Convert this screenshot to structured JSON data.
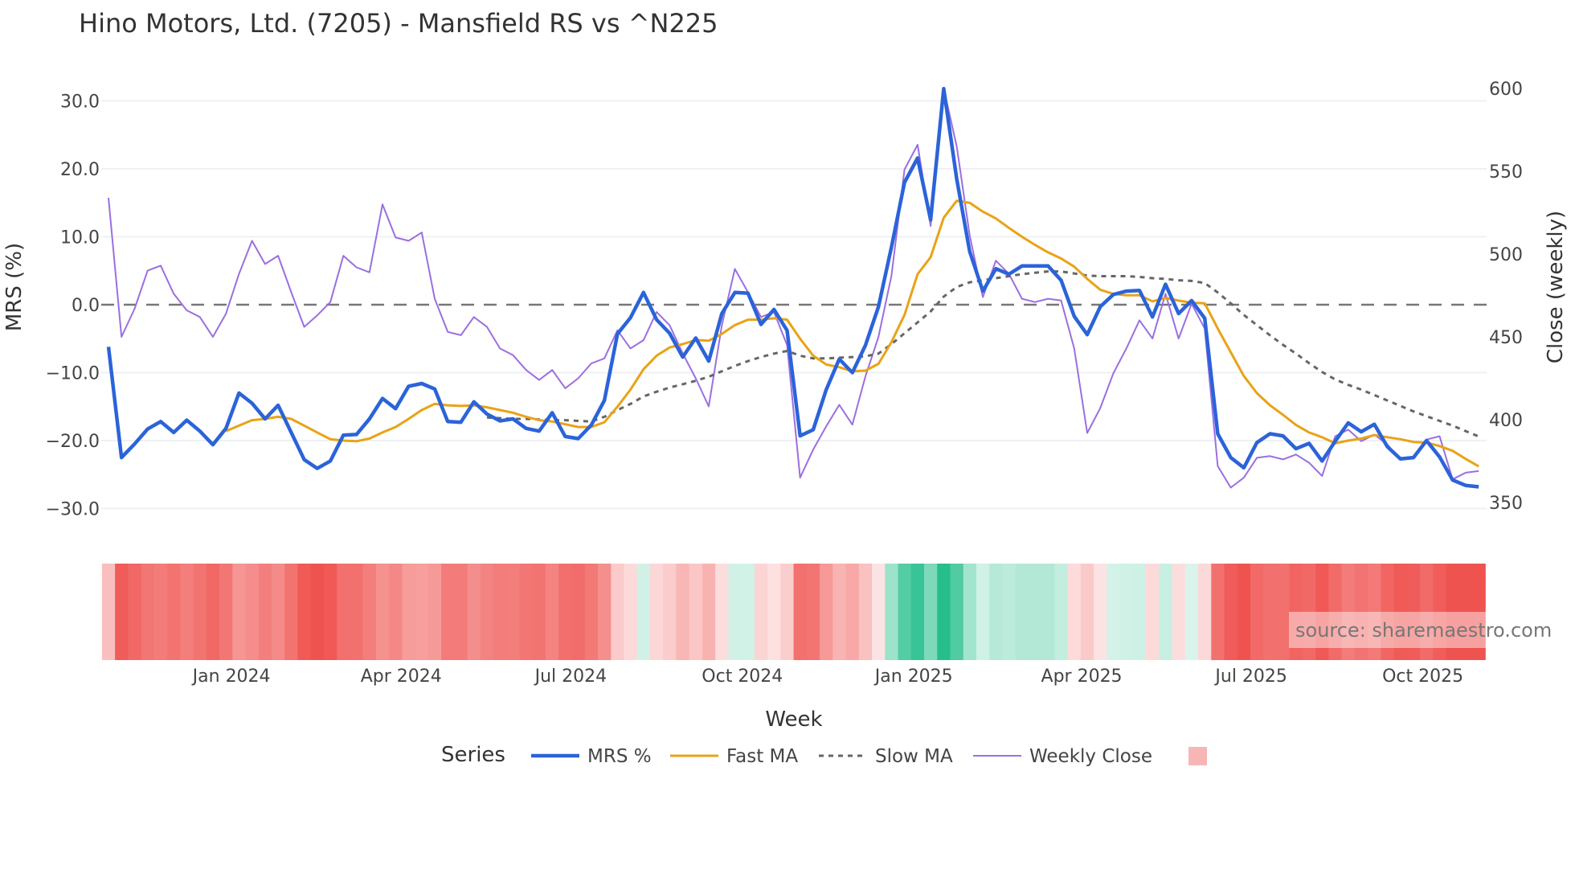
{
  "chart_data": {
    "type": "line",
    "title": "Hino Motors, Ltd. (7205) - Mansfield RS vs ^N225",
    "xlabel": "Week",
    "ylabel": "MRS (%)",
    "y2label": "Close (weekly)",
    "x_start": "2023-10-27",
    "x_step_days": 7,
    "ylim": [
      -33,
      34
    ],
    "y2lim": [
      330,
      613
    ],
    "yticks": [
      "30.0",
      "20.0",
      "10.0",
      "0.0",
      "−10.0",
      "−20.0",
      "−30.0"
    ],
    "ytick_values": [
      30,
      20,
      10,
      0,
      -10,
      -20,
      -30
    ],
    "y2ticks": [
      "600",
      "550",
      "500",
      "450",
      "400",
      "350"
    ],
    "y2tick_values": [
      600,
      550,
      500,
      450,
      400,
      350
    ],
    "xticks": [
      "Jan 2024",
      "Apr 2024",
      "Jul 2024",
      "Oct 2024",
      "Jan 2025",
      "Apr 2025",
      "Jul 2025",
      "Oct 2025"
    ],
    "xtick_dates": [
      "2024-01-01",
      "2024-04-01",
      "2024-07-01",
      "2024-10-01",
      "2025-01-01",
      "2025-04-01",
      "2025-07-01",
      "2025-10-01"
    ],
    "zero_line": 0,
    "legend_title": "Series",
    "legend_position": "bottom",
    "series": [
      {
        "name": "MRS %",
        "color": "#2b63d9",
        "axis": "left",
        "start": 0,
        "values": [
          -6.2,
          -22.5,
          -20.5,
          -18.3,
          -17.2,
          -18.8,
          -17.0,
          -18.6,
          -20.6,
          -18.2,
          -13.0,
          -14.5,
          -16.8,
          -14.8,
          -18.8,
          -22.8,
          -24.1,
          -23.0,
          -19.2,
          -19.1,
          -16.8,
          -13.8,
          -15.3,
          -12.0,
          -11.6,
          -12.4,
          -17.2,
          -17.3,
          -14.3,
          -16.1,
          -17.1,
          -16.8,
          -18.2,
          -18.6,
          -15.9,
          -19.4,
          -19.7,
          -17.7,
          -14.1,
          -4.3,
          -1.9,
          1.8,
          -2.2,
          -4.2,
          -7.7,
          -4.9,
          -8.3,
          -1.3,
          1.8,
          1.7,
          -2.9,
          -0.7,
          -3.8,
          -19.3,
          -18.4,
          -12.5,
          -8.0,
          -10.0,
          -6.0,
          -0.3,
          8.5,
          18.0,
          21.6,
          12.5,
          31.8,
          18.5,
          7.8,
          2.0,
          5.3,
          4.5,
          5.7,
          5.7,
          5.7,
          3.6,
          -1.7,
          -4.4,
          -0.3,
          1.5,
          2.0,
          2.1,
          -1.8,
          3.0,
          -1.3,
          0.6,
          -2.0,
          -19.0,
          -22.5,
          -24.0,
          -20.3,
          -19.0,
          -19.3,
          -21.2,
          -20.4,
          -23.0,
          -20.1,
          -17.4,
          -18.7,
          -17.6,
          -20.9,
          -22.7,
          -22.5,
          -20.0,
          -22.4,
          -25.8,
          -26.6,
          -26.8
        ]
      },
      {
        "name": "Fast MA",
        "color": "#e8a317",
        "axis": "left",
        "start": 9,
        "values": [
          -18.6,
          -17.8,
          -17.0,
          -16.8,
          -16.5,
          -16.8,
          -17.8,
          -18.8,
          -19.8,
          -20.0,
          -20.1,
          -19.7,
          -18.8,
          -18.0,
          -16.8,
          -15.5,
          -14.6,
          -14.8,
          -14.9,
          -14.8,
          -15.1,
          -15.5,
          -15.9,
          -16.5,
          -17.0,
          -17.2,
          -17.6,
          -18.0,
          -18.0,
          -17.3,
          -15.0,
          -12.5,
          -9.5,
          -7.5,
          -6.3,
          -5.8,
          -5.2,
          -5.3,
          -4.3,
          -3.0,
          -2.2,
          -2.2,
          -2.0,
          -2.2,
          -5.0,
          -7.5,
          -8.8,
          -9.2,
          -9.8,
          -9.7,
          -8.7,
          -5.5,
          -1.5,
          4.5,
          7.0,
          12.8,
          15.3,
          15.0,
          13.7,
          12.7,
          11.3,
          10.0,
          8.8,
          7.7,
          6.8,
          5.6,
          3.8,
          2.2,
          1.6,
          1.4,
          1.4,
          0.5,
          1.0,
          0.6,
          0.3,
          0.2,
          -3.5,
          -7.0,
          -10.5,
          -13.0,
          -14.8,
          -16.2,
          -17.7,
          -18.8,
          -19.5,
          -20.4,
          -20.0,
          -19.7,
          -19.2,
          -19.5,
          -19.8,
          -20.2,
          -20.3,
          -20.8,
          -21.5,
          -22.7,
          -23.8
        ]
      },
      {
        "name": "Slow MA",
        "color": "#666666",
        "axis": "left",
        "start": 29,
        "values": [
          -16.6,
          -16.7,
          -16.8,
          -16.8,
          -16.9,
          -17.0,
          -17.0,
          -17.1,
          -17.2,
          -16.5,
          -15.5,
          -14.6,
          -13.5,
          -12.8,
          -12.2,
          -11.7,
          -11.2,
          -10.6,
          -9.8,
          -9.0,
          -8.3,
          -7.7,
          -7.2,
          -6.8,
          -7.5,
          -7.9,
          -7.9,
          -7.8,
          -7.7,
          -7.6,
          -7.2,
          -5.8,
          -4.2,
          -2.6,
          -1.0,
          1.2,
          2.6,
          3.3,
          3.6,
          3.9,
          4.2,
          4.5,
          4.7,
          4.9,
          4.9,
          4.6,
          4.3,
          4.2,
          4.2,
          4.2,
          4.1,
          3.9,
          3.8,
          3.6,
          3.5,
          3.2,
          1.8,
          0.2,
          -1.5,
          -3.0,
          -4.5,
          -5.9,
          -7.2,
          -8.6,
          -9.9,
          -11.0,
          -11.8,
          -12.5,
          -13.3,
          -14.1,
          -14.9,
          -15.7,
          -16.4,
          -17.1,
          -17.8,
          -18.6,
          -19.4
        ]
      },
      {
        "name": "Weekly Close",
        "color": "#9b6fe0",
        "axis": "right",
        "start": 0,
        "values": [
          534,
          450,
          467,
          490,
          493,
          476,
          466,
          462,
          450,
          464,
          488,
          508,
          494,
          499,
          477,
          456,
          463,
          471,
          499,
          492,
          489,
          530,
          510,
          508,
          513,
          473,
          453,
          451,
          462,
          456,
          443,
          439,
          430,
          424,
          430,
          419,
          425,
          434,
          437,
          454,
          443,
          448,
          465,
          457,
          440,
          425,
          408,
          457,
          491,
          477,
          462,
          465,
          445,
          365,
          382,
          396,
          409,
          397,
          426,
          450,
          487,
          551,
          566,
          517,
          600,
          565,
          511,
          474,
          496,
          488,
          473,
          471,
          473,
          472,
          443,
          392,
          407,
          428,
          443,
          460,
          449,
          476,
          449,
          470,
          455,
          372,
          359,
          365,
          377,
          378,
          376,
          379,
          374,
          366,
          390,
          394,
          387,
          391,
          385,
          376,
          377,
          388,
          390,
          364,
          368,
          369
        ]
      }
    ],
    "heatmap": {
      "based_on": "MRS %",
      "neg_color": "#ef5350",
      "pos_color": "#26bf8c"
    },
    "legend_swatch_color": "#f7b6b6"
  },
  "source": "source: sharemaestro.com"
}
